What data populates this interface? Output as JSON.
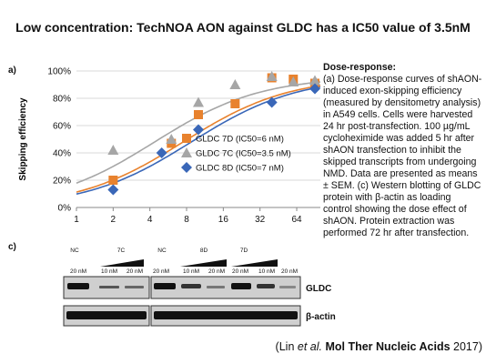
{
  "title": "Low concentration: TechNOA AON against GLDC has a IC50 value of 3.5nM",
  "panel_a_label": "a)",
  "panel_c_label": "c)",
  "chart_data": {
    "type": "scatter",
    "ylabel": "Skipping efficiency",
    "xlabel": "",
    "x_scale": "log2",
    "x_ticks": [
      1,
      2,
      4,
      8,
      16,
      32,
      64
    ],
    "x_tick_labels": [
      "1",
      "2",
      "4",
      "8",
      "16",
      "32",
      "64"
    ],
    "xlim": [
      1,
      100
    ],
    "ylim": [
      0,
      100
    ],
    "y_ticks": [
      0,
      20,
      40,
      60,
      80,
      100
    ],
    "y_tick_labels": [
      "0%",
      "20%",
      "40%",
      "60%",
      "80%",
      "100%"
    ],
    "legend_position": "center-right",
    "series": [
      {
        "name": "GLDC 7D (IC50=6 nM)",
        "marker": "square",
        "color": "#e8822e",
        "x": [
          2,
          6,
          10,
          20,
          40,
          60,
          100
        ],
        "y": [
          20,
          47,
          68,
          76,
          95,
          94,
          91
        ],
        "fit_ic50": 6
      },
      {
        "name": "GLDC 7C (IC50=3.5 nM)",
        "marker": "triangle",
        "color": "#a6a6a6",
        "x": [
          2,
          6,
          10,
          20,
          40,
          60,
          100
        ],
        "y": [
          42,
          50,
          77,
          90,
          96,
          92,
          93
        ],
        "fit_ic50": 3.5
      },
      {
        "name": "GLDC 8D (IC50=7 nM)",
        "marker": "diamond",
        "color": "#3a67b8",
        "x": [
          2,
          5,
          10,
          40,
          100
        ],
        "y": [
          13,
          40,
          57,
          77,
          87
        ],
        "fit_ic50": 7
      }
    ]
  },
  "blot": {
    "group_labels": [
      "NC",
      "7C",
      "NC",
      "8D",
      "7D"
    ],
    "dose_labels": [
      "20 nM",
      "10 nM",
      "20 nM",
      "20 nM",
      "10 nM",
      "20 nM",
      "20 nM",
      "10 nM",
      "20 nM"
    ],
    "band_labels": [
      "GLDC",
      "β-actin"
    ]
  },
  "caption": {
    "heading": "Dose-response:",
    "body": "(a) Dose-response curves of shAON-induced exon-skipping efficiency (measured by densitometry analysis) in A549 cells. Cells were harvested 24 hr post-transfection. 100 µg/mL cycloheximide was added 5 hr after shAON transfection to inhibit the skipped transcripts from undergoing NMD. Data are presented as means ± SEM. (c) Western blotting of GLDC protein with β-actin as loading control showing the dose effect of shAON. Protein extraction was performed 72 hr after transfection."
  },
  "citation": {
    "open": "(Lin ",
    "etal": "et al.",
    "journal": "Mol Ther Nucleic Acids",
    "year": " 2017)"
  }
}
